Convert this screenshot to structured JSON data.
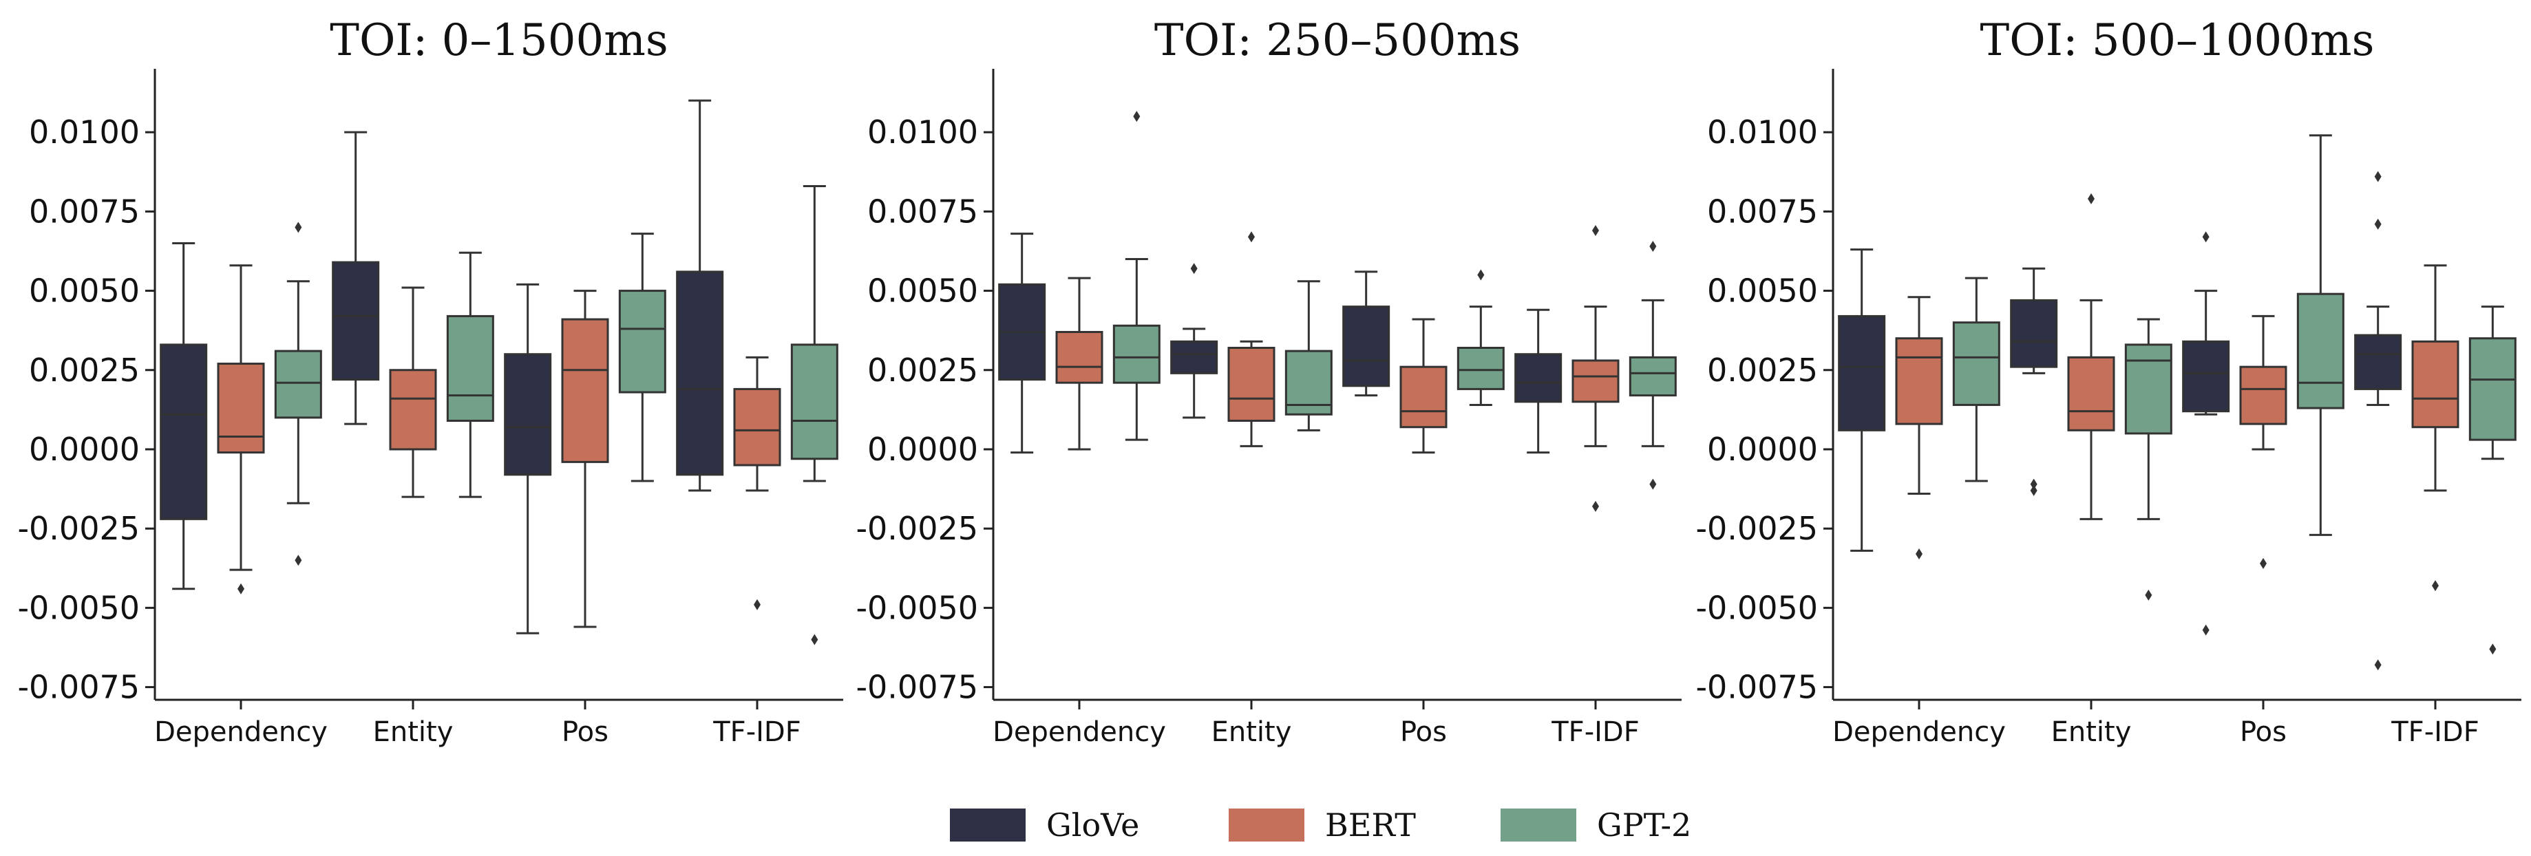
{
  "chart_data": {
    "type": "boxplot",
    "legend": [
      {
        "name": "GloVe",
        "color": "#2e3045"
      },
      {
        "name": "BERT",
        "color": "#c5705a"
      },
      {
        "name": "GPT-2",
        "color": "#72a088"
      }
    ],
    "legend_position": "bottom-center",
    "ylim": [
      -0.0079,
      0.012
    ],
    "yticks": [
      "0.0100",
      "0.0075",
      "0.0050",
      "0.0025",
      "0.0000",
      "-0.0025",
      "-0.0050",
      "-0.0075"
    ],
    "panels": [
      {
        "title": "TOI: 0–1500ms",
        "categories": [
          {
            "label": "Dependency",
            "boxes": [
              {
                "series": "GloVe",
                "min": -0.0044,
                "q1": -0.0022,
                "median": 0.0011,
                "q3": 0.0033,
                "max": 0.0065,
                "outliers": []
              },
              {
                "series": "BERT",
                "min": -0.0038,
                "q1": -0.0001,
                "median": 0.0004,
                "q3": 0.0027,
                "max": 0.0058,
                "outliers": [
                  -0.0044
                ]
              },
              {
                "series": "GPT-2",
                "min": -0.0017,
                "q1": 0.001,
                "median": 0.0021,
                "q3": 0.0031,
                "max": 0.0053,
                "outliers": [
                  0.007,
                  -0.0035
                ]
              }
            ]
          },
          {
            "label": "Entity",
            "boxes": [
              {
                "series": "GloVe",
                "min": 0.0008,
                "q1": 0.0022,
                "median": 0.0042,
                "q3": 0.0059,
                "max": 0.01,
                "outliers": []
              },
              {
                "series": "BERT",
                "min": -0.0015,
                "q1": 0.0,
                "median": 0.0016,
                "q3": 0.0025,
                "max": 0.0051,
                "outliers": []
              },
              {
                "series": "GPT-2",
                "min": -0.0015,
                "q1": 0.0009,
                "median": 0.0017,
                "q3": 0.0042,
                "max": 0.0062,
                "outliers": []
              }
            ]
          },
          {
            "label": "Pos",
            "boxes": [
              {
                "series": "GloVe",
                "min": -0.0058,
                "q1": -0.0008,
                "median": 0.0007,
                "q3": 0.003,
                "max": 0.0052,
                "outliers": []
              },
              {
                "series": "BERT",
                "min": -0.0056,
                "q1": -0.0004,
                "median": 0.0025,
                "q3": 0.0041,
                "max": 0.005,
                "outliers": []
              },
              {
                "series": "GPT-2",
                "min": -0.001,
                "q1": 0.0018,
                "median": 0.0038,
                "q3": 0.005,
                "max": 0.0068,
                "outliers": []
              }
            ]
          },
          {
            "label": "TF-IDF",
            "boxes": [
              {
                "series": "GloVe",
                "min": -0.0013,
                "q1": -0.0008,
                "median": 0.0019,
                "q3": 0.0056,
                "max": 0.011,
                "outliers": []
              },
              {
                "series": "BERT",
                "min": -0.0013,
                "q1": -0.0005,
                "median": 0.0006,
                "q3": 0.0019,
                "max": 0.0029,
                "outliers": [
                  -0.0049
                ]
              },
              {
                "series": "GPT-2",
                "min": -0.001,
                "q1": -0.0003,
                "median": 0.0009,
                "q3": 0.0033,
                "max": 0.0083,
                "outliers": [
                  -0.006
                ]
              }
            ]
          }
        ]
      },
      {
        "title": "TOI: 250–500ms",
        "categories": [
          {
            "label": "Dependency",
            "boxes": [
              {
                "series": "GloVe",
                "min": -0.0001,
                "q1": 0.0022,
                "median": 0.0037,
                "q3": 0.0052,
                "max": 0.0068,
                "outliers": []
              },
              {
                "series": "BERT",
                "min": 0.0,
                "q1": 0.0021,
                "median": 0.0026,
                "q3": 0.0037,
                "max": 0.0054,
                "outliers": []
              },
              {
                "series": "GPT-2",
                "min": 0.0003,
                "q1": 0.0021,
                "median": 0.0029,
                "q3": 0.0039,
                "max": 0.006,
                "outliers": [
                  0.0105
                ]
              }
            ]
          },
          {
            "label": "Entity",
            "boxes": [
              {
                "series": "GloVe",
                "min": 0.001,
                "q1": 0.0024,
                "median": 0.003,
                "q3": 0.0034,
                "max": 0.0038,
                "outliers": [
                  0.0057
                ]
              },
              {
                "series": "BERT",
                "min": 0.0001,
                "q1": 0.0009,
                "median": 0.0016,
                "q3": 0.0032,
                "max": 0.0034,
                "outliers": [
                  0.0067
                ]
              },
              {
                "series": "GPT-2",
                "min": 0.0006,
                "q1": 0.0011,
                "median": 0.0014,
                "q3": 0.0031,
                "max": 0.0053,
                "outliers": []
              }
            ]
          },
          {
            "label": "Pos",
            "boxes": [
              {
                "series": "GloVe",
                "min": 0.0017,
                "q1": 0.002,
                "median": 0.0028,
                "q3": 0.0045,
                "max": 0.0056,
                "outliers": []
              },
              {
                "series": "BERT",
                "min": -0.0001,
                "q1": 0.0007,
                "median": 0.0012,
                "q3": 0.0026,
                "max": 0.0041,
                "outliers": []
              },
              {
                "series": "GPT-2",
                "min": 0.0014,
                "q1": 0.0019,
                "median": 0.0025,
                "q3": 0.0032,
                "max": 0.0045,
                "outliers": [
                  0.0055
                ]
              }
            ]
          },
          {
            "label": "TF-IDF",
            "boxes": [
              {
                "series": "GloVe",
                "min": -0.0001,
                "q1": 0.0015,
                "median": 0.0021,
                "q3": 0.003,
                "max": 0.0044,
                "outliers": []
              },
              {
                "series": "BERT",
                "min": 0.0001,
                "q1": 0.0015,
                "median": 0.0023,
                "q3": 0.0028,
                "max": 0.0045,
                "outliers": [
                  0.0069,
                  -0.0018
                ]
              },
              {
                "series": "GPT-2",
                "min": 0.0001,
                "q1": 0.0017,
                "median": 0.0024,
                "q3": 0.0029,
                "max": 0.0047,
                "outliers": [
                  0.0064,
                  -0.0011
                ]
              }
            ]
          }
        ]
      },
      {
        "title": "TOI: 500–1000ms",
        "categories": [
          {
            "label": "Dependency",
            "boxes": [
              {
                "series": "GloVe",
                "min": -0.0032,
                "q1": 0.0006,
                "median": 0.0026,
                "q3": 0.0042,
                "max": 0.0063,
                "outliers": []
              },
              {
                "series": "BERT",
                "min": -0.0014,
                "q1": 0.0008,
                "median": 0.0029,
                "q3": 0.0035,
                "max": 0.0048,
                "outliers": [
                  -0.0033
                ]
              },
              {
                "series": "GPT-2",
                "min": -0.001,
                "q1": 0.0014,
                "median": 0.0029,
                "q3": 0.004,
                "max": 0.0054,
                "outliers": []
              }
            ]
          },
          {
            "label": "Entity",
            "boxes": [
              {
                "series": "GloVe",
                "min": 0.0024,
                "q1": 0.0026,
                "median": 0.0034,
                "q3": 0.0047,
                "max": 0.0057,
                "outliers": [
                  -0.0011,
                  -0.0013
                ]
              },
              {
                "series": "BERT",
                "min": -0.0022,
                "q1": 0.0006,
                "median": 0.0012,
                "q3": 0.0029,
                "max": 0.0047,
                "outliers": [
                  0.0079
                ]
              },
              {
                "series": "GPT-2",
                "min": -0.0022,
                "q1": 0.0005,
                "median": 0.0028,
                "q3": 0.0033,
                "max": 0.0041,
                "outliers": [
                  -0.0046
                ]
              }
            ]
          },
          {
            "label": "Pos",
            "boxes": [
              {
                "series": "GloVe",
                "min": 0.0011,
                "q1": 0.0012,
                "median": 0.0024,
                "q3": 0.0034,
                "max": 0.005,
                "outliers": [
                  0.0067,
                  -0.0057
                ]
              },
              {
                "series": "BERT",
                "min": 0.0,
                "q1": 0.0008,
                "median": 0.0019,
                "q3": 0.0026,
                "max": 0.0042,
                "outliers": [
                  -0.0036
                ]
              },
              {
                "series": "GPT-2",
                "min": -0.0027,
                "q1": 0.0013,
                "median": 0.0021,
                "q3": 0.0049,
                "max": 0.0099,
                "outliers": []
              }
            ]
          },
          {
            "label": "TF-IDF",
            "boxes": [
              {
                "series": "GloVe",
                "min": 0.0014,
                "q1": 0.0019,
                "median": 0.003,
                "q3": 0.0036,
                "max": 0.0045,
                "outliers": [
                  0.0086,
                  0.0071,
                  -0.0068
                ]
              },
              {
                "series": "BERT",
                "min": -0.0013,
                "q1": 0.0007,
                "median": 0.0016,
                "q3": 0.0034,
                "max": 0.0058,
                "outliers": [
                  -0.0043
                ]
              },
              {
                "series": "GPT-2",
                "min": -0.0003,
                "q1": 0.0003,
                "median": 0.0022,
                "q3": 0.0035,
                "max": 0.0045,
                "outliers": [
                  -0.0063
                ]
              }
            ]
          }
        ]
      }
    ]
  }
}
